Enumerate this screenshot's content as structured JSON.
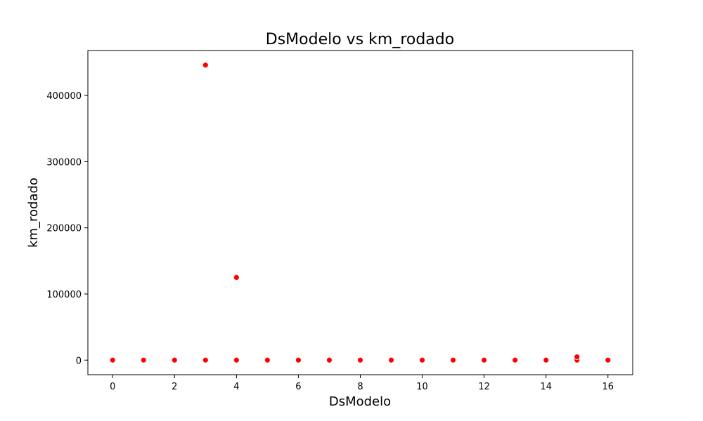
{
  "chart_data": {
    "type": "scatter",
    "title": "DsModelo vs km_rodado",
    "xlabel": "DsModelo",
    "ylabel": "km_rodado",
    "xlim": [
      -0.8,
      16.8
    ],
    "ylim": [
      -22000,
      468000
    ],
    "xticks": [
      0,
      2,
      4,
      6,
      8,
      10,
      12,
      14,
      16
    ],
    "yticks": [
      0,
      100000,
      200000,
      300000,
      400000
    ],
    "marker_color": "#ff0000",
    "grid": false,
    "points": [
      {
        "x": 0,
        "y": 0
      },
      {
        "x": 1,
        "y": 0
      },
      {
        "x": 2,
        "y": 0
      },
      {
        "x": 3,
        "y": 0
      },
      {
        "x": 3,
        "y": 446000
      },
      {
        "x": 4,
        "y": 0
      },
      {
        "x": 4,
        "y": 125000
      },
      {
        "x": 5,
        "y": 0
      },
      {
        "x": 6,
        "y": 0
      },
      {
        "x": 7,
        "y": 0
      },
      {
        "x": 8,
        "y": 0
      },
      {
        "x": 9,
        "y": 0
      },
      {
        "x": 10,
        "y": 0
      },
      {
        "x": 11,
        "y": 0
      },
      {
        "x": 12,
        "y": 0
      },
      {
        "x": 13,
        "y": 0
      },
      {
        "x": 14,
        "y": 0
      },
      {
        "x": 15,
        "y": 0
      },
      {
        "x": 15,
        "y": 5000
      },
      {
        "x": 16,
        "y": 0
      }
    ]
  }
}
